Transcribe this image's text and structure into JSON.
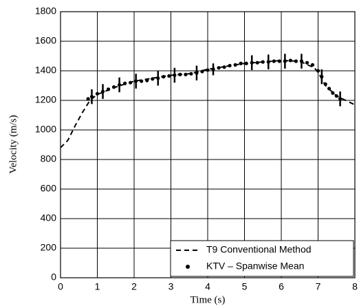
{
  "chart_data": {
    "type": "line",
    "xlabel": "Time (s)",
    "ylabel": "Velocity (m/s)",
    "xlim": [
      0,
      8
    ],
    "ylim": [
      0,
      1800
    ],
    "xticks": [
      0,
      1,
      2,
      3,
      4,
      5,
      6,
      7,
      8
    ],
    "yticks": [
      0,
      200,
      400,
      600,
      800,
      1000,
      1200,
      1400,
      1600,
      1800
    ],
    "grid": true,
    "legend": "lower right",
    "series": [
      {
        "name": "T9 Conventional Method",
        "type": "line",
        "linestyle": "dashed",
        "color": "#000000",
        "x": [
          0,
          0.2,
          0.4,
          0.6,
          0.8,
          1,
          1.5,
          2,
          2.5,
          3,
          3.5,
          4,
          4.5,
          5,
          5.5,
          6,
          6.5,
          6.9,
          7,
          7.2,
          7.5,
          8
        ],
        "values": [
          880,
          930,
          1030,
          1120,
          1200,
          1240,
          1290,
          1330,
          1350,
          1370,
          1380,
          1410,
          1430,
          1450,
          1460,
          1470,
          1465,
          1420,
          1390,
          1300,
          1230,
          1170
        ]
      },
      {
        "name": "KTV – Spanwise Mean",
        "type": "scatter",
        "color": "#000000",
        "x": [
          0.75,
          0.85,
          1.0,
          1.15,
          1.3,
          1.45,
          1.6,
          1.75,
          1.9,
          2.05,
          2.2,
          2.35,
          2.5,
          2.65,
          2.8,
          2.95,
          3.1,
          3.25,
          3.4,
          3.55,
          3.7,
          3.85,
          4.0,
          4.15,
          4.3,
          4.45,
          4.6,
          4.75,
          4.9,
          5.05,
          5.2,
          5.35,
          5.5,
          5.65,
          5.8,
          5.95,
          6.1,
          6.25,
          6.4,
          6.55,
          6.7,
          6.85,
          7.0,
          7.1,
          7.2,
          7.3,
          7.4,
          7.5,
          7.6
        ],
        "values": [
          1210,
          1225,
          1245,
          1260,
          1275,
          1290,
          1305,
          1315,
          1320,
          1330,
          1330,
          1335,
          1345,
          1350,
          1360,
          1365,
          1370,
          1375,
          1375,
          1380,
          1385,
          1395,
          1405,
          1410,
          1420,
          1425,
          1435,
          1440,
          1450,
          1450,
          1455,
          1455,
          1460,
          1460,
          1465,
          1465,
          1465,
          1470,
          1465,
          1465,
          1455,
          1440,
          1400,
          1360,
          1310,
          1280,
          1250,
          1230,
          1210
        ],
        "errors": [
          null,
          50,
          null,
          50,
          null,
          null,
          50,
          null,
          null,
          50,
          null,
          null,
          null,
          50,
          null,
          null,
          50,
          null,
          null,
          null,
          50,
          null,
          null,
          40,
          null,
          null,
          null,
          null,
          null,
          null,
          50,
          null,
          null,
          50,
          null,
          null,
          50,
          null,
          null,
          50,
          null,
          null,
          null,
          50,
          null,
          null,
          null,
          null,
          50
        ]
      }
    ]
  }
}
